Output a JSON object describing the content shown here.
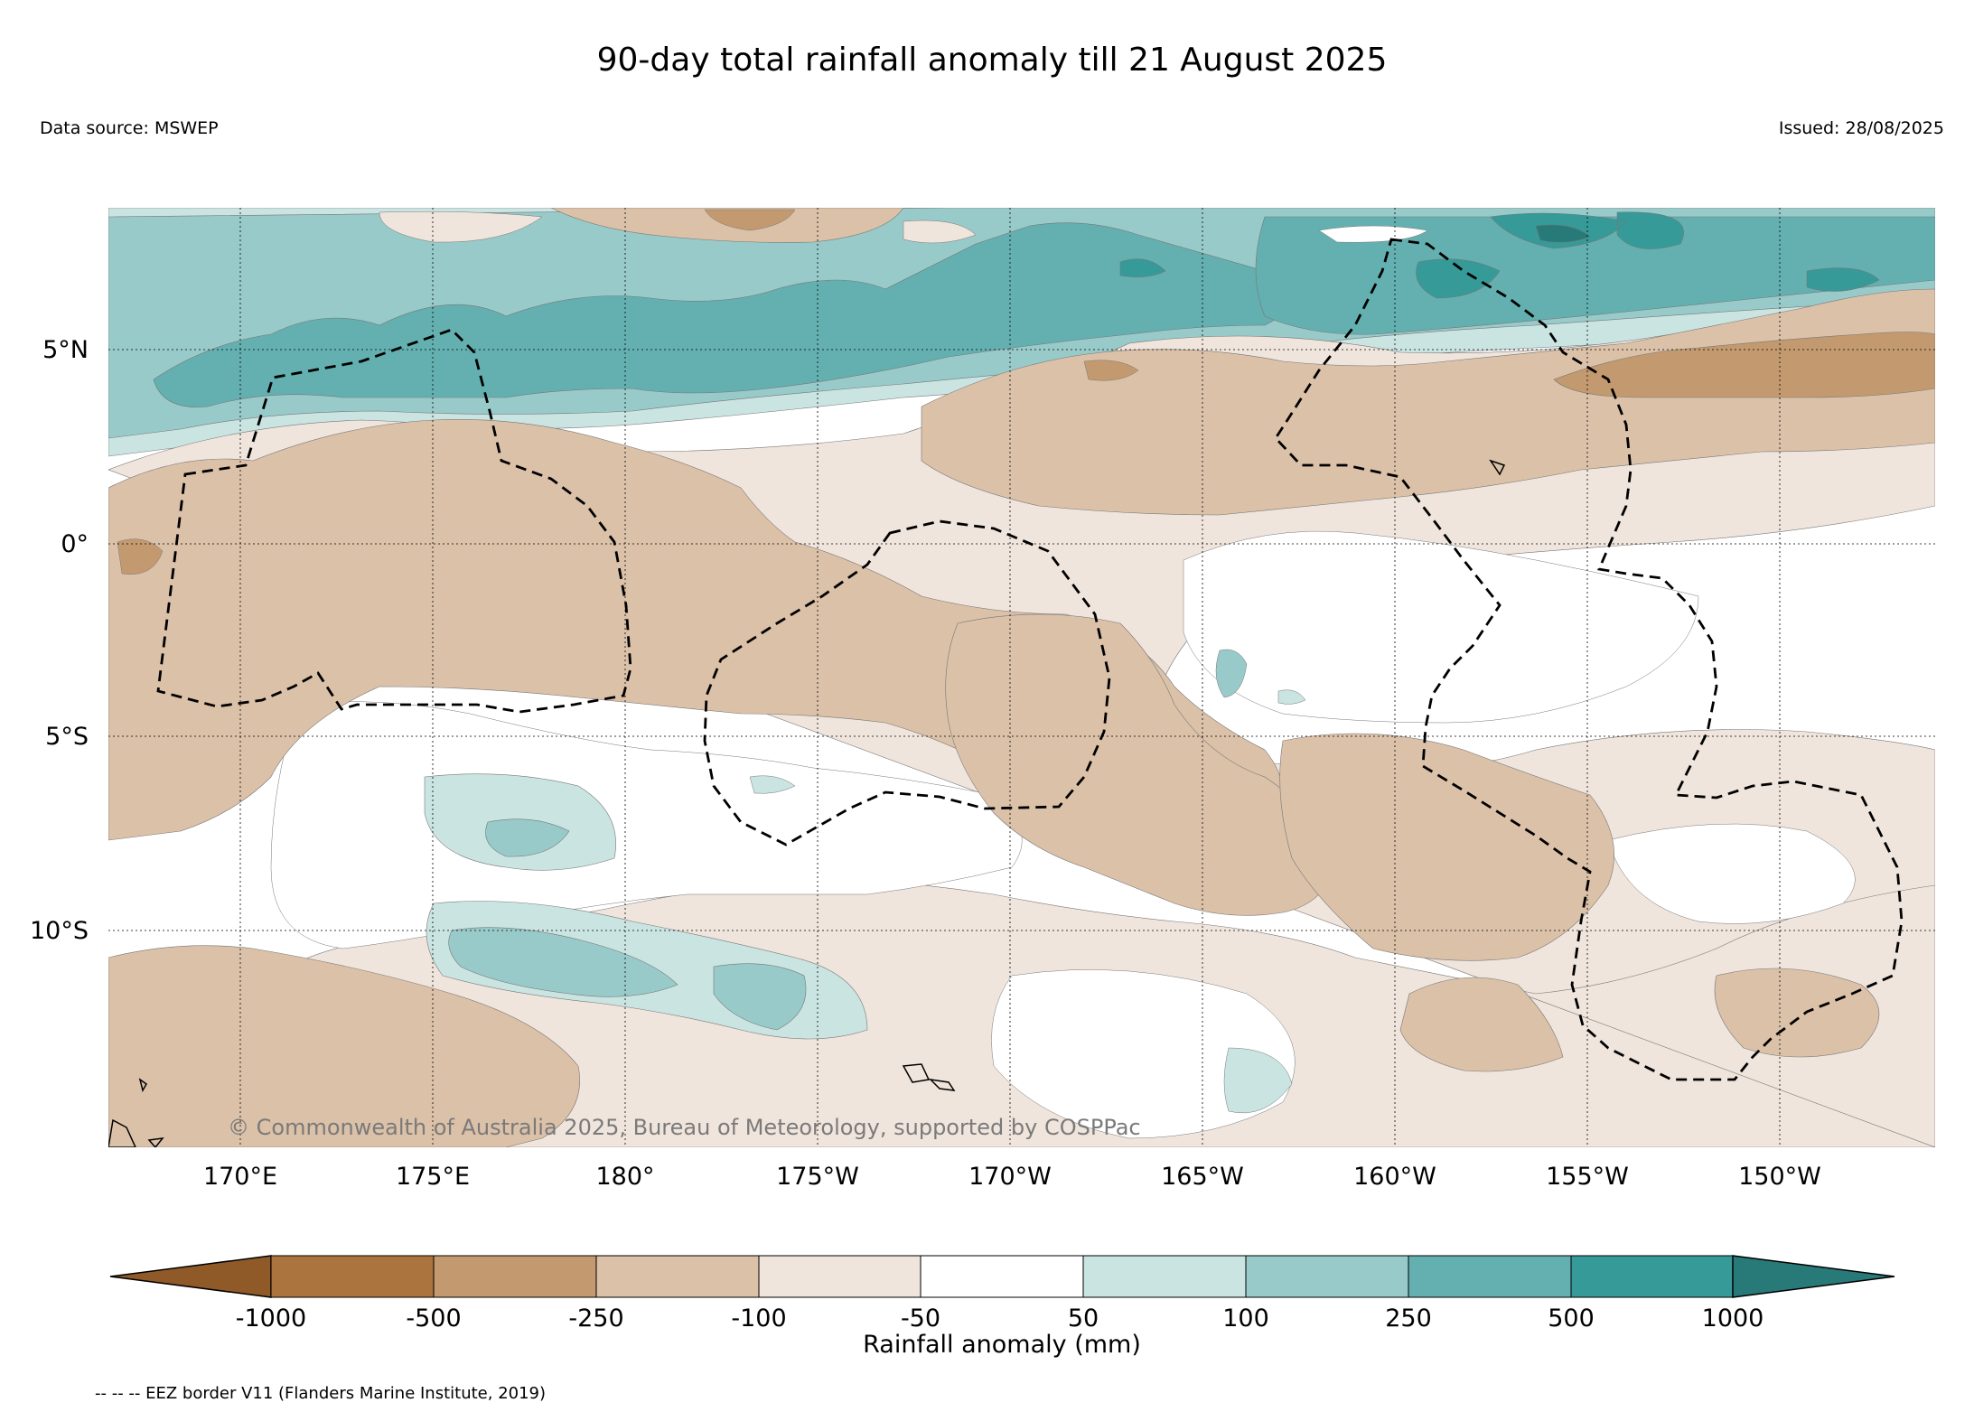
{
  "title": "90-day total rainfall anomaly till 21 August 2025",
  "data_source": "Data source: MSWEP",
  "issued": "Issued: 28/08/2025",
  "copyright": "© Commonwealth of Australia 2025, Bureau of Meteorology, supported by COSPPac",
  "map": {
    "lat_labels": [
      "5°N",
      "0°",
      "5°S",
      "10°S"
    ],
    "lon_labels": [
      "170°E",
      "175°E",
      "180°",
      "175°W",
      "170°W",
      "165°W",
      "160°W",
      "155°W",
      "150°W"
    ],
    "colors": {
      "dry_-1000": "#8f5a28",
      "dry_-500": "#ab733d",
      "dry_-250": "#c39a6f",
      "dry_-100": "#dbc1a8",
      "dry_-50": "#f0e5dc",
      "neutral": "#ffffff",
      "wet_50": "#cae4e2",
      "wet_100": "#98cac9",
      "wet_250": "#64b0b0",
      "wet_500": "#359a98",
      "wet_1000": "#287a78"
    }
  },
  "colorbar": {
    "label": "Rainfall anomaly (mm)",
    "ticks": [
      "-1000",
      "-500",
      "-250",
      "-100",
      "-50",
      "50",
      "100",
      "250",
      "500",
      "1000"
    ],
    "colors": [
      "#8f5a28",
      "#ab733d",
      "#c39a6f",
      "#dbc1a8",
      "#f0e5dc",
      "#ffffff",
      "#cae4e2",
      "#98cac9",
      "#64b0b0",
      "#359a98",
      "#287a78"
    ]
  },
  "footnote": "-- -- -- EEZ border V11 (Flanders Marine Institute, 2019)"
}
